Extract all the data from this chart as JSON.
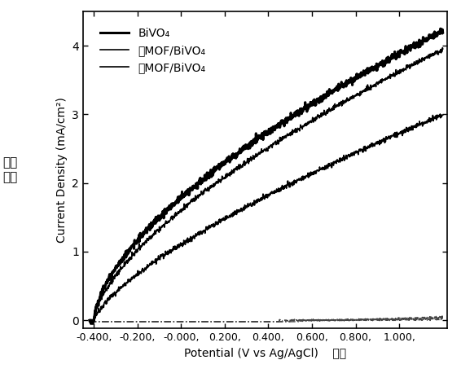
{
  "title": "",
  "xlabel_en": "Potential (V vs Ag/AgCl)",
  "xlabel_cn": "电势",
  "ylabel_en": "Current Density (mA/cm²)",
  "ylabel_cn": "电流\n密度",
  "xlim": [
    -0.45,
    1.22
  ],
  "ylim": [
    -0.12,
    4.5
  ],
  "xticks": [
    -0.4,
    -0.2,
    0.0,
    0.2,
    0.4,
    0.6,
    0.8,
    1.0
  ],
  "xtick_labels": [
    "-0.400,",
    "-0.200,",
    "-0.000,",
    "0.200,",
    "0.400,",
    "0.600,",
    "0.800,",
    "1.000,"
  ],
  "yticks": [
    0,
    1,
    2,
    3,
    4
  ],
  "legend_labels": [
    "BiVO₄",
    "薿MOF/BiVO₄",
    "厜MOF/BiVO₄"
  ],
  "line_lw_bold": 2.2,
  "line_lw_thin": 1.2,
  "dark_lw": 1.0,
  "background_color": "#ffffff"
}
